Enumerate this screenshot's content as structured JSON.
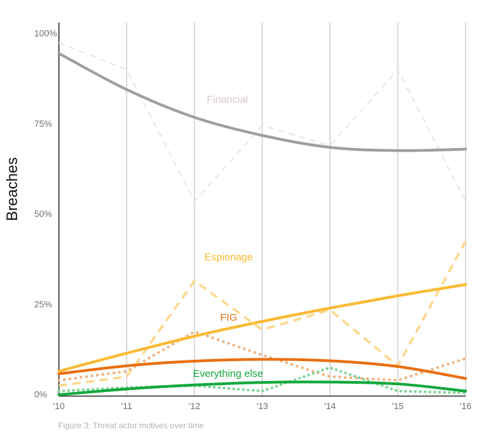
{
  "chart_data": {
    "type": "line",
    "title": "",
    "xlabel": "",
    "ylabel": "Breaches",
    "caption": "Figure 3: Threat actor motives over time",
    "x": [
      "'10",
      "'11",
      "'12",
      "'13",
      "'14",
      "'15",
      "'16"
    ],
    "y_ticks": [
      "0%",
      "25%",
      "50%",
      "75%",
      "100%"
    ],
    "ylim": [
      0,
      100
    ],
    "grid": "vertical",
    "series": [
      {
        "name": "Financial",
        "color": "#d9c6c9",
        "observed_color": "#e6e6e6",
        "trend_color": "#9e9e9e",
        "observed": [
          97.5,
          90,
          53.5,
          74.5,
          69,
          90,
          53.5
        ],
        "trend": [
          94.5,
          84.5,
          76.8,
          71.8,
          68.5,
          67.6,
          68
        ]
      },
      {
        "name": "Espionage",
        "color": "#fbb931",
        "observed_color": "#fdd88e",
        "trend_color": "#fbb931",
        "observed": [
          2.5,
          5,
          31.5,
          18,
          23.5,
          8,
          42.5
        ],
        "trend": [
          6.5,
          11.5,
          16.2,
          20.3,
          24,
          27.4,
          30.5
        ]
      },
      {
        "name": "FIG",
        "color": "#e96f10",
        "observed_color": "#f2b27f",
        "trend_color": "#e96f10",
        "observed": [
          4,
          6.5,
          17.5,
          11,
          5,
          4,
          10
        ],
        "trend": [
          5.8,
          8,
          9.3,
          9.8,
          9.4,
          7.8,
          4.5
        ]
      },
      {
        "name": "Everything else",
        "color": "#13a83c",
        "observed_color": "#7ed595",
        "trend_color": "#13a83c",
        "observed": [
          1,
          2,
          2.5,
          1,
          7.5,
          1,
          0.5
        ],
        "trend": [
          0,
          1.6,
          2.7,
          3.4,
          3.5,
          3.0,
          1.0
        ]
      }
    ]
  }
}
